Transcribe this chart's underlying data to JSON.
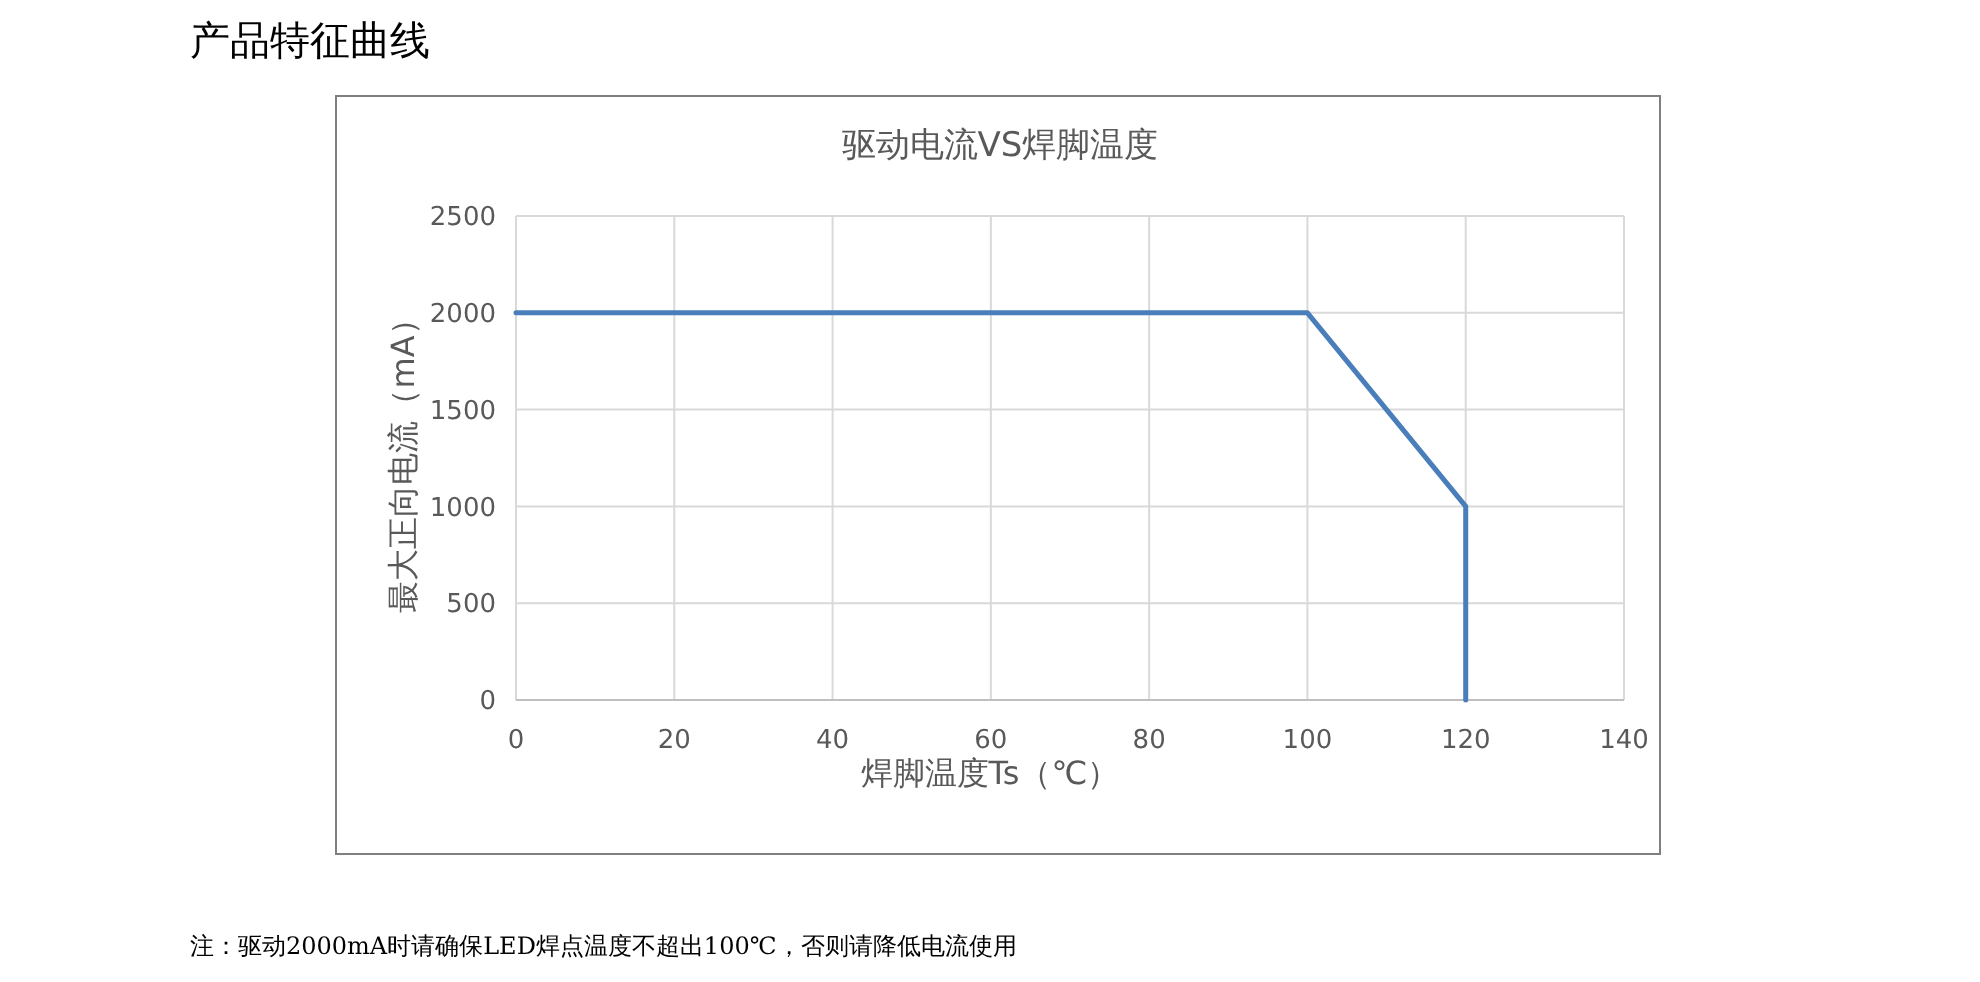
{
  "chart_data": {
    "type": "line",
    "title": "产品特征曲线",
    "subtitle": "驱动电流VS焊脚温度",
    "xlabel": "焊脚温度Ts（℃）",
    "ylabel": "最大正向电流（mA）",
    "annotations": [
      "注：驱动2000mA时请确保LED焊点温度不超出100℃，否则请降低电流使用"
    ],
    "series": [
      {
        "color": "#4a7ebb",
        "x": [
          0,
          100,
          120,
          120
        ],
        "values": [
          2000,
          2000,
          1000,
          0
        ]
      }
    ],
    "xlim": [
      0,
      140
    ],
    "xticks": [
      0,
      20,
      40,
      60,
      80,
      100,
      120,
      140
    ],
    "ylim": [
      0,
      2500
    ],
    "yticks": [
      0,
      500,
      1000,
      1500,
      2000,
      2500
    ],
    "grid": true
  }
}
